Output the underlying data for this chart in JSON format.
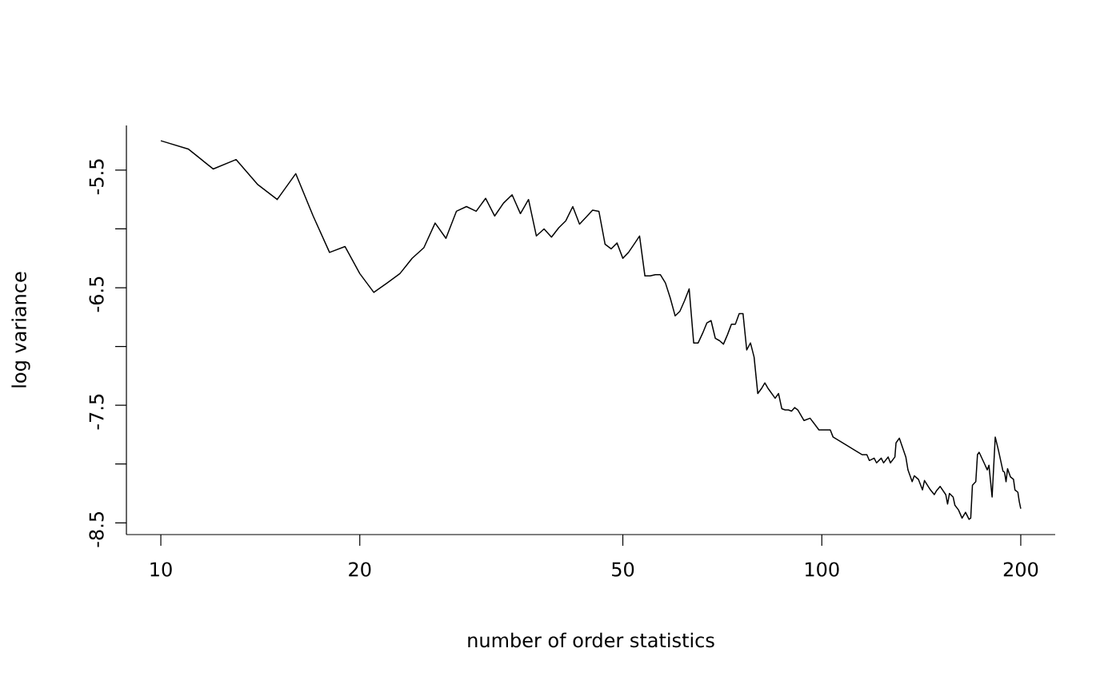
{
  "chart_data": {
    "type": "line",
    "xlabel": "number of order statistics",
    "ylabel": "log variance",
    "log": "x",
    "xlim": [
      8.87,
      225.5
    ],
    "ylim": [
      -8.6,
      -5.12
    ],
    "xticks": [
      10,
      20,
      50,
      100,
      200
    ],
    "yticks": [
      -5.5,
      {
        "value": -6,
        "label": null
      },
      -6.5,
      {
        "value": -7,
        "label": null
      },
      -7.5,
      {
        "value": -8,
        "label": null
      },
      -8.5
    ],
    "series": [
      {
        "color": "#000000",
        "x": [
          10,
          11,
          12,
          13,
          14,
          15,
          16,
          17,
          18,
          19,
          20,
          21,
          22,
          23,
          24,
          25,
          26,
          27,
          28,
          29,
          30,
          31,
          32,
          33,
          34,
          35,
          36,
          37,
          38,
          39,
          40,
          41,
          42,
          43,
          44,
          45,
          46,
          47,
          48,
          49,
          50,
          51,
          52,
          53,
          54,
          55,
          56,
          57,
          58,
          59,
          60,
          61,
          62,
          63,
          64,
          65,
          66,
          67,
          68,
          69,
          70,
          71,
          72,
          73,
          74,
          75,
          76,
          77,
          78,
          79,
          80,
          81,
          82,
          83,
          85,
          86,
          87,
          88,
          89,
          90,
          91,
          92,
          94,
          96,
          99,
          103,
          104,
          109,
          112,
          115,
          117,
          118,
          120,
          121,
          123,
          124,
          126,
          127,
          129,
          129.5,
          131,
          134,
          135,
          137,
          138,
          140,
          142,
          143,
          146,
          148,
          149,
          151,
          154,
          155,
          156,
          158,
          159,
          161,
          163,
          165,
          167,
          168,
          169,
          171,
          172,
          173,
          175,
          176,
          178,
          179,
          181,
          183,
          185,
          188,
          189,
          190,
          191,
          193,
          195,
          196,
          198,
          199,
          200
        ],
        "values": [
          -5.25,
          -5.32,
          -5.49,
          -5.41,
          -5.62,
          -5.75,
          -5.53,
          -5.89,
          -6.2,
          -6.15,
          -6.38,
          -6.54,
          -6.46,
          -6.38,
          -6.25,
          -6.16,
          -5.95,
          -6.08,
          -5.85,
          -5.81,
          -5.85,
          -5.74,
          -5.89,
          -5.78,
          -5.71,
          -5.87,
          -5.75,
          -6.06,
          -6.0,
          -6.07,
          -5.99,
          -5.93,
          -5.81,
          -5.96,
          -5.9,
          -5.84,
          -5.85,
          -6.13,
          -6.17,
          -6.12,
          -6.25,
          -6.2,
          -6.13,
          -6.06,
          -6.4,
          -6.4,
          -6.39,
          -6.39,
          -6.46,
          -6.59,
          -6.74,
          -6.7,
          -6.61,
          -6.51,
          -6.97,
          -6.97,
          -6.89,
          -6.8,
          -6.78,
          -6.93,
          -6.95,
          -6.98,
          -6.9,
          -6.81,
          -6.81,
          -6.72,
          -6.72,
          -7.03,
          -6.97,
          -7.09,
          -7.4,
          -7.36,
          -7.31,
          -7.36,
          -7.44,
          -7.4,
          -7.53,
          -7.54,
          -7.54,
          -7.55,
          -7.52,
          -7.54,
          -7.63,
          -7.61,
          -7.71,
          -7.71,
          -7.77,
          -7.84,
          -7.88,
          -7.92,
          -7.92,
          -7.97,
          -7.95,
          -7.99,
          -7.95,
          -7.99,
          -7.94,
          -7.99,
          -7.94,
          -7.82,
          -7.78,
          -7.94,
          -8.05,
          -8.15,
          -8.1,
          -8.13,
          -8.22,
          -8.14,
          -8.22,
          -8.26,
          -8.23,
          -8.19,
          -8.26,
          -8.34,
          -8.25,
          -8.28,
          -8.35,
          -8.39,
          -8.46,
          -8.41,
          -8.47,
          -8.46,
          -8.18,
          -8.15,
          -7.92,
          -7.9,
          -7.96,
          -7.99,
          -8.05,
          -8.01,
          -8.28,
          -7.77,
          -7.88,
          -8.06,
          -8.07,
          -8.15,
          -8.04,
          -8.11,
          -8.13,
          -8.22,
          -8.24,
          -8.32,
          -8.38
        ]
      }
    ]
  }
}
